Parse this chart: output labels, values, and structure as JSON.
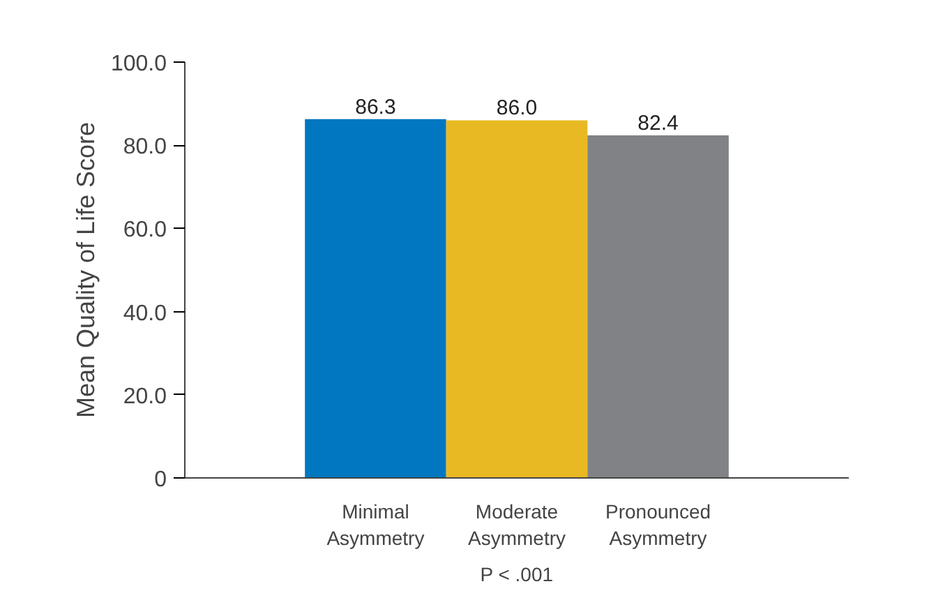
{
  "chart_data": {
    "type": "bar",
    "ylabel": "Mean Quality of Life Score",
    "categories": [
      "Minimal Asymmetry",
      "Moderate Asymmetry",
      "Pronounced Asymmetry"
    ],
    "values": [
      86.3,
      86.0,
      82.4
    ],
    "colors": [
      "#0077c0",
      "#e8b923",
      "#808285"
    ],
    "ylim": [
      0,
      100
    ],
    "yticks": [
      {
        "value": 0,
        "label": "0"
      },
      {
        "value": 20,
        "label": "20.0"
      },
      {
        "value": 40,
        "label": "40.0"
      },
      {
        "value": 60,
        "label": "60.0"
      },
      {
        "value": 80,
        "label": "80.0"
      },
      {
        "value": 100,
        "label": "100.0"
      }
    ],
    "value_labels": [
      "86.3",
      "86.0",
      "82.4"
    ],
    "grid": false,
    "annotations": [
      "P < .001"
    ]
  }
}
